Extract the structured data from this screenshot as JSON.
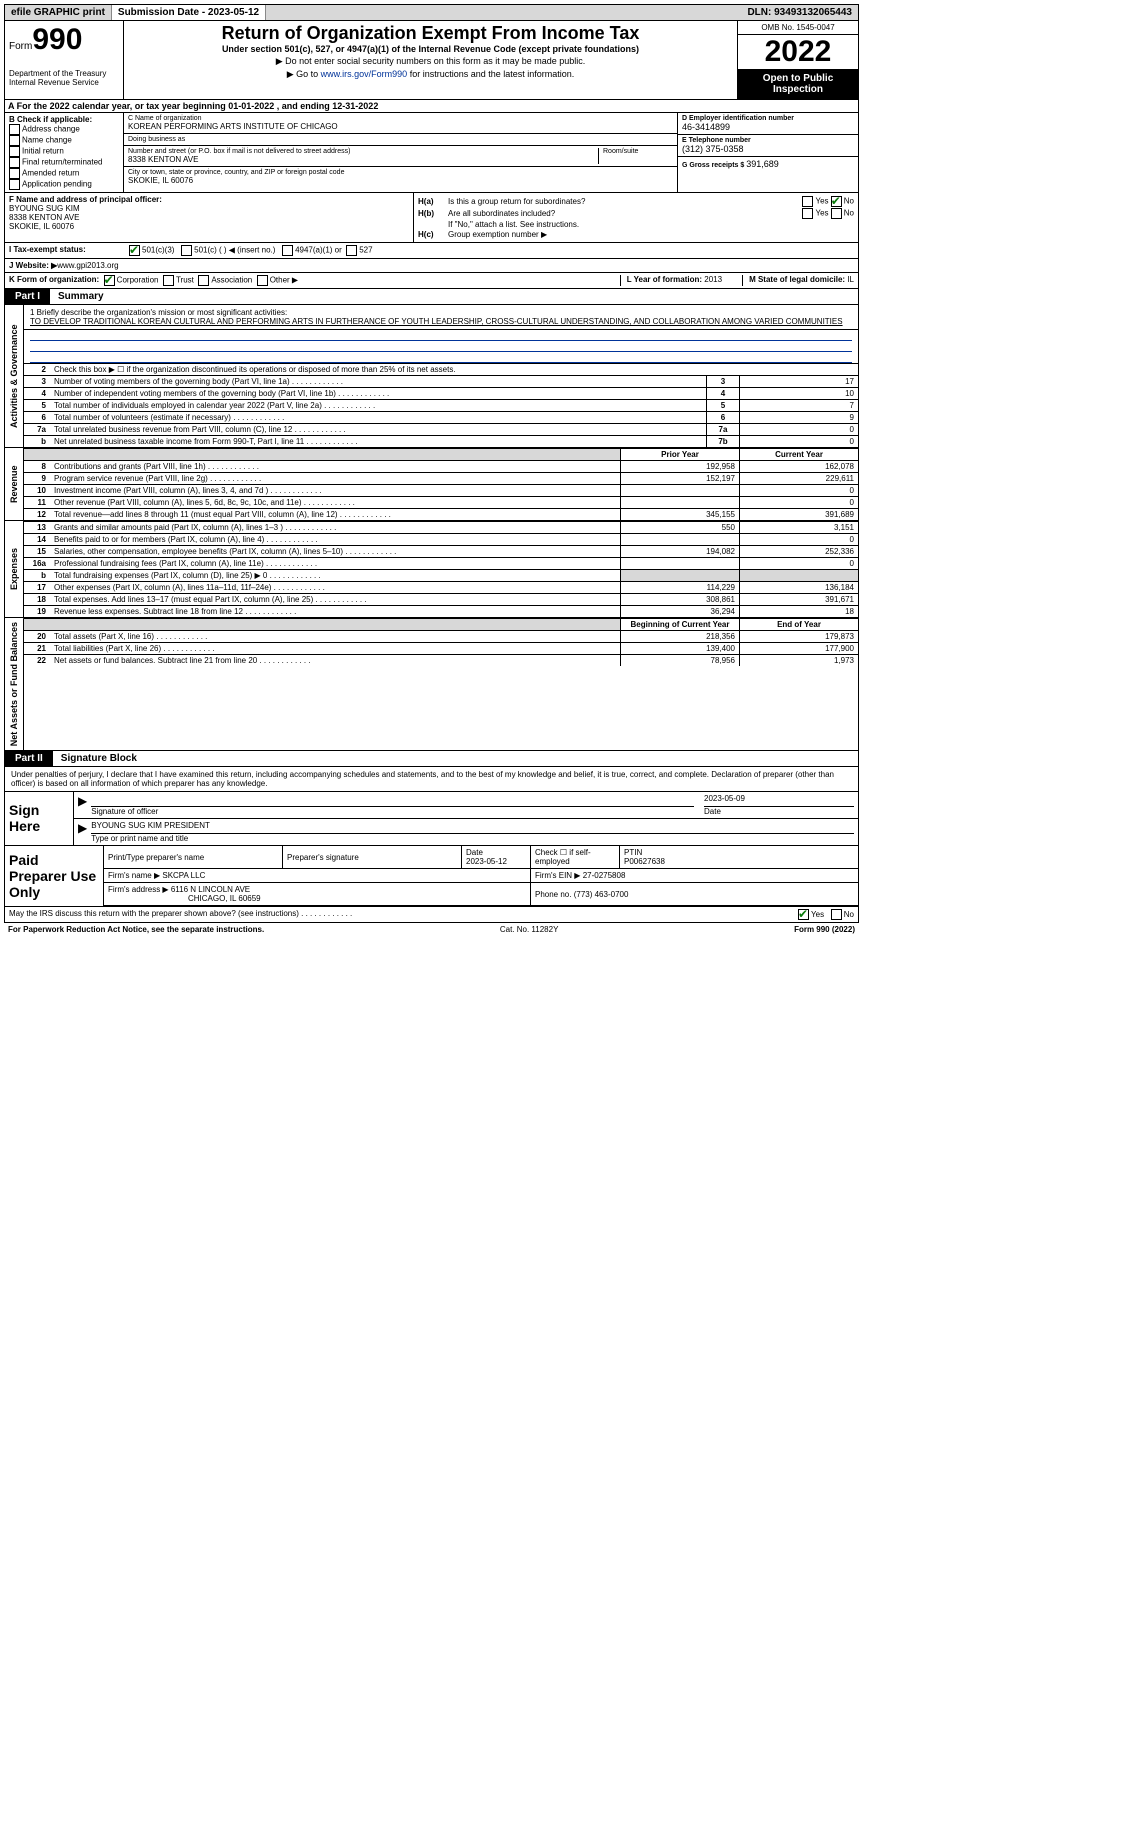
{
  "topbar": {
    "efile": "efile GRAPHIC print",
    "submission_label": "Submission Date - ",
    "submission_date": "2023-05-12",
    "dln_label": "DLN: ",
    "dln": "93493132065443"
  },
  "header": {
    "form_word": "Form",
    "form_number": "990",
    "dept": "Department of the Treasury\nInternal Revenue Service",
    "title": "Return of Organization Exempt From Income Tax",
    "subtitle": "Under section 501(c), 527, or 4947(a)(1) of the Internal Revenue Code (except private foundations)",
    "note1": "▶ Do not enter social security numbers on this form as it may be made public.",
    "note2_pre": "▶ Go to ",
    "note2_link": "www.irs.gov/Form990",
    "note2_post": " for instructions and the latest information.",
    "omb": "OMB No. 1545-0047",
    "tax_year": "2022",
    "open_public": "Open to Public Inspection"
  },
  "rowA": "A For the 2022 calendar year, or tax year beginning 01-01-2022   , and ending 12-31-2022",
  "colB": {
    "header": "B Check if applicable:",
    "items": [
      "Address change",
      "Name change",
      "Initial return",
      "Final return/terminated",
      "Amended return",
      "Application pending"
    ]
  },
  "colC": {
    "name_label": "C Name of organization",
    "name": "KOREAN PERFORMING ARTS INSTITUTE OF CHICAGO",
    "dba_label": "Doing business as",
    "dba": "",
    "street_label": "Number and street (or P.O. box if mail is not delivered to street address)",
    "room_label": "Room/suite",
    "street": "8338 KENTON AVE",
    "city_label": "City or town, state or province, country, and ZIP or foreign postal code",
    "city": "SKOKIE, IL  60076"
  },
  "colD": {
    "ein_label": "D Employer identification number",
    "ein": "46-3414899",
    "phone_label": "E Telephone number",
    "phone": "(312) 375-0358",
    "gross_label": "G Gross receipts $ ",
    "gross": "391,689"
  },
  "sectionF": {
    "label": "F  Name and address of principal officer:",
    "name": "BYOUNG SUG KIM",
    "street": "8338 KENTON AVE",
    "city": "SKOKIE, IL  60076"
  },
  "sectionH": {
    "ha": "Is this a group return for subordinates?",
    "hb": "Are all subordinates included?",
    "hb_note": "If \"No,\" attach a list. See instructions.",
    "hc": "Group exemption number ▶",
    "yes": "Yes",
    "no": "No"
  },
  "rowI": {
    "label": "I   Tax-exempt status:",
    "opts": [
      "501(c)(3)",
      "501(c) (  ) ◀ (insert no.)",
      "4947(a)(1) or",
      "527"
    ]
  },
  "rowJ": {
    "label": "J  Website: ▶  ",
    "val": "www.gpi2013.org"
  },
  "rowK": {
    "label": "K Form of organization:",
    "opts": [
      "Corporation",
      "Trust",
      "Association",
      "Other ▶"
    ],
    "year_label": "L Year of formation: ",
    "year": "2013",
    "state_label": "M State of legal domicile: ",
    "state": "IL"
  },
  "partI": {
    "tag": "Part I",
    "title": "Summary",
    "mission_label": "1   Briefly describe the organization's mission or most significant activities:",
    "mission": "TO DEVELOP TRADITIONAL KOREAN CULTURAL AND PERFORMING ARTS IN FURTHERANCE OF YOUTH LEADERSHIP, CROSS-CULTURAL UNDERSTANDING, AND COLLABORATION AMONG VARIED COMMUNITIES",
    "line2": "Check this box ▶ ☐  if the organization discontinued its operations or disposed of more than 25% of its net assets.",
    "prior_year": "Prior Year",
    "current_year": "Current Year",
    "begin_year": "Beginning of Current Year",
    "end_year": "End of Year",
    "rows_top": [
      {
        "n": "3",
        "desc": "Number of voting members of the governing body (Part VI, line 1a)",
        "box": "3",
        "val": "17"
      },
      {
        "n": "4",
        "desc": "Number of independent voting members of the governing body (Part VI, line 1b)",
        "box": "4",
        "val": "10"
      },
      {
        "n": "5",
        "desc": "Total number of individuals employed in calendar year 2022 (Part V, line 2a)",
        "box": "5",
        "val": "7"
      },
      {
        "n": "6",
        "desc": "Total number of volunteers (estimate if necessary)",
        "box": "6",
        "val": "9"
      },
      {
        "n": "7a",
        "desc": "Total unrelated business revenue from Part VIII, column (C), line 12",
        "box": "7a",
        "val": "0"
      },
      {
        "n": " b",
        "desc": "Net unrelated business taxable income from Form 990-T, Part I, line 11",
        "box": "7b",
        "val": "0"
      }
    ],
    "rows_rev": [
      {
        "n": "8",
        "desc": "Contributions and grants (Part VIII, line 1h)",
        "prior": "192,958",
        "curr": "162,078"
      },
      {
        "n": "9",
        "desc": "Program service revenue (Part VIII, line 2g)",
        "prior": "152,197",
        "curr": "229,611"
      },
      {
        "n": "10",
        "desc": "Investment income (Part VIII, column (A), lines 3, 4, and 7d )",
        "prior": "",
        "curr": "0"
      },
      {
        "n": "11",
        "desc": "Other revenue (Part VIII, column (A), lines 5, 6d, 8c, 9c, 10c, and 11e)",
        "prior": "",
        "curr": "0"
      },
      {
        "n": "12",
        "desc": "Total revenue—add lines 8 through 11 (must equal Part VIII, column (A), line 12)",
        "prior": "345,155",
        "curr": "391,689"
      }
    ],
    "rows_exp": [
      {
        "n": "13",
        "desc": "Grants and similar amounts paid (Part IX, column (A), lines 1–3 )",
        "prior": "550",
        "curr": "3,151"
      },
      {
        "n": "14",
        "desc": "Benefits paid to or for members (Part IX, column (A), line 4)",
        "prior": "",
        "curr": "0"
      },
      {
        "n": "15",
        "desc": "Salaries, other compensation, employee benefits (Part IX, column (A), lines 5–10)",
        "prior": "194,082",
        "curr": "252,336"
      },
      {
        "n": "16a",
        "desc": "Professional fundraising fees (Part IX, column (A), line 11e)",
        "prior": "",
        "curr": "0"
      },
      {
        "n": " b",
        "desc": "Total fundraising expenses (Part IX, column (D), line 25) ▶ 0",
        "prior": "shade",
        "curr": "shade"
      },
      {
        "n": "17",
        "desc": "Other expenses (Part IX, column (A), lines 11a–11d, 11f–24e)",
        "prior": "114,229",
        "curr": "136,184"
      },
      {
        "n": "18",
        "desc": "Total expenses. Add lines 13–17 (must equal Part IX, column (A), line 25)",
        "prior": "308,861",
        "curr": "391,671"
      },
      {
        "n": "19",
        "desc": "Revenue less expenses. Subtract line 18 from line 12",
        "prior": "36,294",
        "curr": "18"
      }
    ],
    "rows_net": [
      {
        "n": "20",
        "desc": "Total assets (Part X, line 16)",
        "prior": "218,356",
        "curr": "179,873"
      },
      {
        "n": "21",
        "desc": "Total liabilities (Part X, line 26)",
        "prior": "139,400",
        "curr": "177,900"
      },
      {
        "n": "22",
        "desc": "Net assets or fund balances. Subtract line 21 from line 20",
        "prior": "78,956",
        "curr": "1,973"
      }
    ],
    "vtabs": {
      "gov": "Activities & Governance",
      "rev": "Revenue",
      "exp": "Expenses",
      "net": "Net Assets or Fund Balances"
    }
  },
  "partII": {
    "tag": "Part II",
    "title": "Signature Block",
    "declaration": "Under penalties of perjury, I declare that I have examined this return, including accompanying schedules and statements, and to the best of my knowledge and belief, it is true, correct, and complete. Declaration of preparer (other than officer) is based on all information of which preparer has any knowledge."
  },
  "sign": {
    "left": "Sign Here",
    "sig_officer_label": "Signature of officer",
    "date": "2023-05-09",
    "date_label": "Date",
    "name": "BYOUNG SUG KIM  PRESIDENT",
    "name_label": "Type or print name and title"
  },
  "paid": {
    "left": "Paid Preparer Use Only",
    "h_print": "Print/Type preparer's name",
    "h_sig": "Preparer's signature",
    "h_date": "Date",
    "date": "2023-05-12",
    "h_check": "Check ☐ if self-employed",
    "h_ptin": "PTIN",
    "ptin": "P00627638",
    "firm_name_label": "Firm's name    ▶ ",
    "firm_name": "SKCPA LLC",
    "firm_ein_label": "Firm's EIN ▶ ",
    "firm_ein": "27-0275808",
    "firm_addr_label": "Firm's address ▶ ",
    "firm_addr1": "6116 N LINCOLN AVE",
    "firm_addr2": "CHICAGO, IL  60659",
    "phone_label": "Phone no. ",
    "phone": "(773) 463-0700"
  },
  "may": {
    "text": "May the IRS discuss this return with the preparer shown above? (see instructions)",
    "yes": "Yes",
    "no": "No"
  },
  "footer": {
    "left": "For Paperwork Reduction Act Notice, see the separate instructions.",
    "mid": "Cat. No. 11282Y",
    "right": "Form 990 (2022)"
  }
}
